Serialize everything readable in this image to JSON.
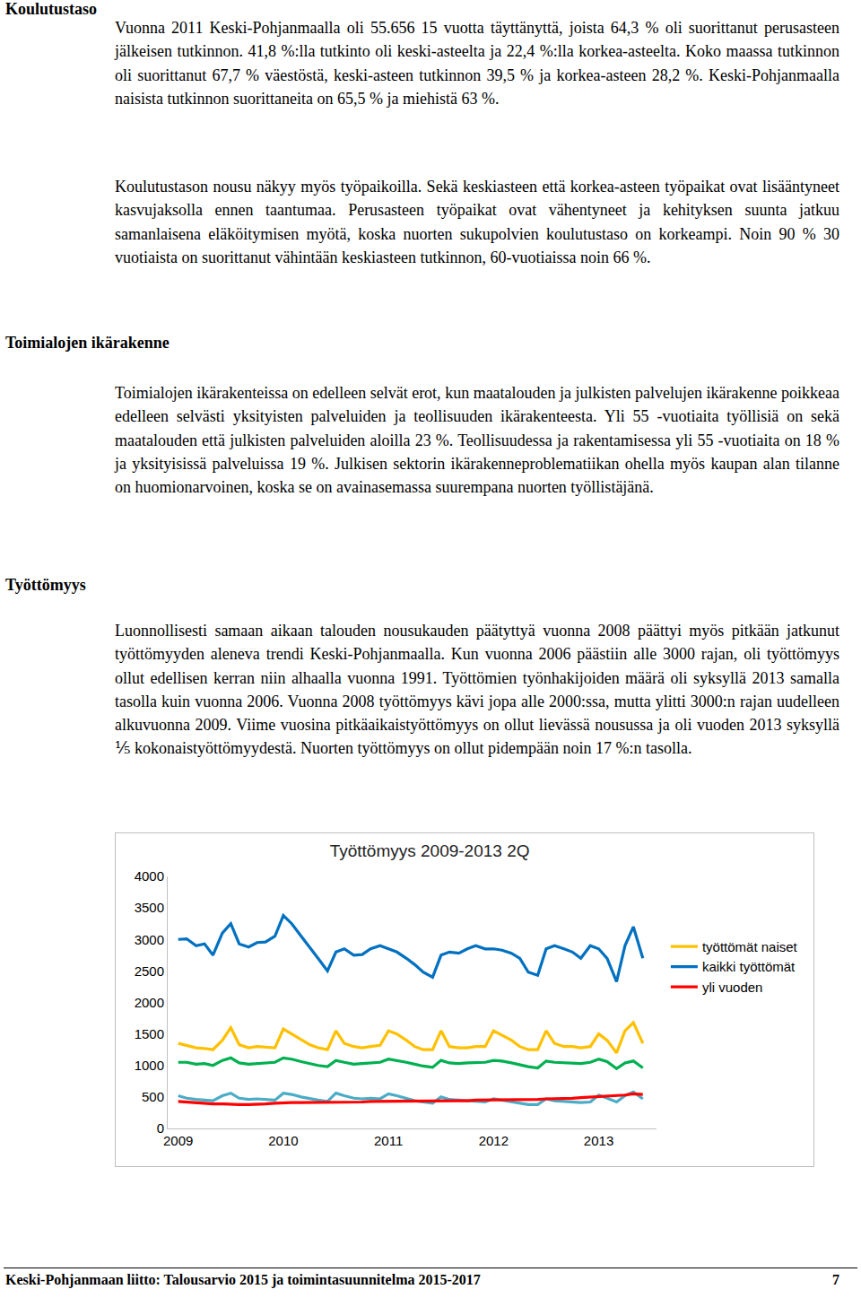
{
  "sections": [
    {
      "heading": "Koulutustaso",
      "paragraphs": [
        "Vuonna 2011 Keski-Pohjanmaalla oli 55.656 15 vuotta täyttänyttä, joista 64,3 % oli suorittanut perusasteen jälkeisen tutkinnon. 41,8 %:lla tutkinto oli keski-asteelta ja 22,4 %:lla korkea-asteelta. Koko maassa tutkinnon oli suorittanut 67,7 % väestöstä, keski-asteen tutkinnon 39,5 % ja korkea-asteen 28,2 %. Keski-Pohjanmaalla naisista tutkinnon suorittaneita on 65,5 % ja miehistä 63 %.",
        "Koulutustason nousu näkyy myös työpaikoilla. Sekä keskiasteen että korkea-asteen työpaikat ovat lisääntyneet kasvujaksolla ennen taantumaa. Perusasteen työpaikat ovat vähentyneet ja kehityksen suunta jatkuu samanlaisena eläköitymisen myötä, koska nuorten sukupolvien koulutustaso on korkeampi. Noin 90 % 30 vuotiaista on suorittanut vähintään keskiasteen tutkinnon, 60-vuotiaissa noin 66 %."
      ]
    },
    {
      "heading": "Toimialojen ikärakenne",
      "paragraphs": [
        "Toimialojen ikärakenteissa on edelleen selvät erot, kun maatalouden ja julkisten palvelujen ikärakenne poikkeaa edelleen selvästi yksityisten palveluiden ja teollisuuden ikärakenteesta. Yli 55 -vuotiaita työllisiä on sekä maatalouden että julkisten palveluiden aloilla 23 %. Teollisuudessa ja rakentamisessa yli 55 -vuotiaita on 18 % ja yksityisissä palveluissa 19 %. Julkisen sektorin ikärakenneproblematiikan ohella myös kaupan alan tilanne on huomionarvoinen, koska se on avainasemassa suurempana nuorten työllistäjänä."
      ]
    },
    {
      "heading": "Työttömyys",
      "paragraphs": [
        "Luonnollisesti samaan aikaan talouden nousukauden päätyttyä vuonna 2008 päättyi myös pitkään jatkunut työttömyyden aleneva trendi Keski-Pohjanmaalla. Kun vuonna 2006 päästiin alle 3000 rajan, oli työttömyys ollut edellisen kerran niin alhaalla vuonna 1991. Työttömien työnhakijoiden määrä oli syksyllä 2013 samalla tasolla kuin vuonna 2006. Vuonna 2008 työttömyys kävi jopa alle 2000:ssa, mutta ylitti 3000:n rajan uudelleen alkuvuonna 2009. Viime vuosina pitkäaikaistyöttömyys on ollut lievässä nousussa ja oli vuoden 2013 syksyllä ⅕ kokonaistyöttömyydestä. Nuorten työttömyys on ollut pidempään noin 17 %:n tasolla."
      ]
    }
  ],
  "chart_data": {
    "type": "line",
    "title": "Työttömyys 2009-2013 2Q",
    "x": [
      2009,
      2009.08,
      2009.17,
      2009.25,
      2009.33,
      2009.42,
      2009.5,
      2009.58,
      2009.67,
      2009.75,
      2009.83,
      2009.92,
      2010,
      2010.08,
      2010.17,
      2010.25,
      2010.33,
      2010.42,
      2010.5,
      2010.58,
      2010.67,
      2010.75,
      2010.83,
      2010.92,
      2011,
      2011.08,
      2011.17,
      2011.25,
      2011.33,
      2011.42,
      2011.5,
      2011.58,
      2011.67,
      2011.75,
      2011.83,
      2011.92,
      2012,
      2012.08,
      2012.17,
      2012.25,
      2012.33,
      2012.42,
      2012.5,
      2012.58,
      2012.67,
      2012.75,
      2012.83,
      2012.92,
      2013,
      2013.08,
      2013.17,
      2013.25,
      2013.33,
      2013.42
    ],
    "xlim": [
      2008.9,
      2013.55
    ],
    "xticks": [
      2009,
      2010,
      2011,
      2012,
      2013
    ],
    "ylim": [
      0,
      4000
    ],
    "yticks": [
      0,
      500,
      1000,
      1500,
      2000,
      2500,
      3000,
      3500,
      4000
    ],
    "grid": false,
    "legend": "right",
    "series": [
      {
        "name": "kaikki työttömät",
        "color": "#0070c0",
        "values": [
          3000,
          3010,
          2900,
          2930,
          2750,
          3100,
          3250,
          2930,
          2880,
          2950,
          2960,
          3050,
          3380,
          3250,
          3050,
          2880,
          2700,
          2500,
          2800,
          2850,
          2750,
          2760,
          2850,
          2900,
          2850,
          2800,
          2700,
          2600,
          2480,
          2400,
          2750,
          2800,
          2780,
          2850,
          2900,
          2850,
          2850,
          2830,
          2780,
          2700,
          2480,
          2430,
          2850,
          2900,
          2850,
          2800,
          2700,
          2900,
          2850,
          2700,
          2330,
          2900,
          3200,
          2700
        ]
      },
      {
        "name": "työttömät naiset",
        "color": "#ffc000",
        "values": [
          1350,
          1320,
          1280,
          1270,
          1250,
          1400,
          1600,
          1330,
          1280,
          1300,
          1290,
          1280,
          1580,
          1500,
          1400,
          1330,
          1280,
          1250,
          1550,
          1350,
          1300,
          1280,
          1300,
          1320,
          1550,
          1500,
          1400,
          1300,
          1250,
          1250,
          1550,
          1300,
          1280,
          1280,
          1300,
          1300,
          1550,
          1480,
          1400,
          1300,
          1250,
          1250,
          1550,
          1350,
          1300,
          1300,
          1280,
          1300,
          1500,
          1400,
          1200,
          1550,
          1680,
          1350
        ]
      },
      {
        "color": "#00b050",
        "values": [
          1050,
          1050,
          1020,
          1030,
          1000,
          1080,
          1120,
          1040,
          1020,
          1030,
          1030,
          1050,
          1120,
          1100,
          1060,
          1030,
          1000,
          980,
          1080,
          1050,
          1020,
          1030,
          1040,
          1050,
          1100,
          1080,
          1050,
          1020,
          990,
          970,
          1080,
          1040,
          1030,
          1040,
          1050,
          1050,
          1080,
          1070,
          1040,
          1010,
          980,
          960,
          1070,
          1050,
          1040,
          1040,
          1030,
          1050,
          1100,
          1060,
          950,
          1040,
          1070,
          960
        ]
      },
      {
        "color": "#4bacc6",
        "values": [
          520,
          480,
          460,
          450,
          440,
          520,
          560,
          480,
          460,
          470,
          460,
          450,
          560,
          540,
          500,
          470,
          450,
          430,
          560,
          520,
          480,
          470,
          480,
          470,
          550,
          520,
          480,
          440,
          420,
          400,
          500,
          460,
          450,
          440,
          430,
          420,
          470,
          450,
          420,
          400,
          380,
          380,
          470,
          440,
          430,
          420,
          410,
          420,
          530,
          480,
          420,
          520,
          580,
          470
        ]
      },
      {
        "name": "yli vuoden",
        "color": "#ff0000",
        "values": [
          430,
          420,
          410,
          400,
          390,
          390,
          380,
          380,
          380,
          380,
          390,
          400,
          410,
          410,
          410,
          410,
          410,
          420,
          420,
          420,
          420,
          420,
          430,
          430,
          430,
          430,
          430,
          430,
          430,
          430,
          440,
          440,
          440,
          440,
          450,
          450,
          450,
          450,
          450,
          450,
          460,
          460,
          470,
          470,
          470,
          480,
          490,
          500,
          510,
          510,
          520,
          530,
          550,
          540
        ]
      }
    ]
  },
  "footer": {
    "text": "Keski-Pohjanmaan liitto: Talousarvio 2015 ja toimintasuunnitelma 2015-2017",
    "page": 7
  }
}
